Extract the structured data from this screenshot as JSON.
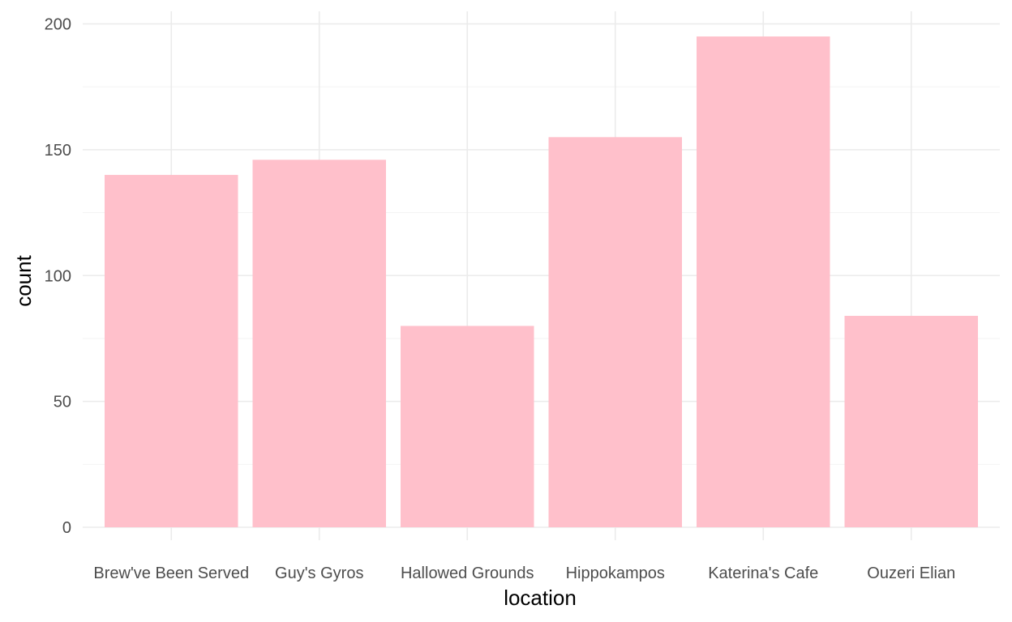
{
  "chart_data": {
    "type": "bar",
    "title": "",
    "xlabel": "location",
    "ylabel": "count",
    "categories": [
      "Brew've Been Served",
      "Guy's Gyros",
      "Hallowed Grounds",
      "Hippokampos",
      "Katerina's Cafe",
      "Ouzeri Elian"
    ],
    "values": [
      140,
      146,
      80,
      155,
      195,
      84
    ],
    "ylim": [
      0,
      200
    ],
    "yticks": [
      0,
      50,
      100,
      150,
      200
    ],
    "grid": true,
    "bar_color": "#FFC0CB",
    "background": "#FFFFFF",
    "grid_color": "#EBEBEB"
  }
}
